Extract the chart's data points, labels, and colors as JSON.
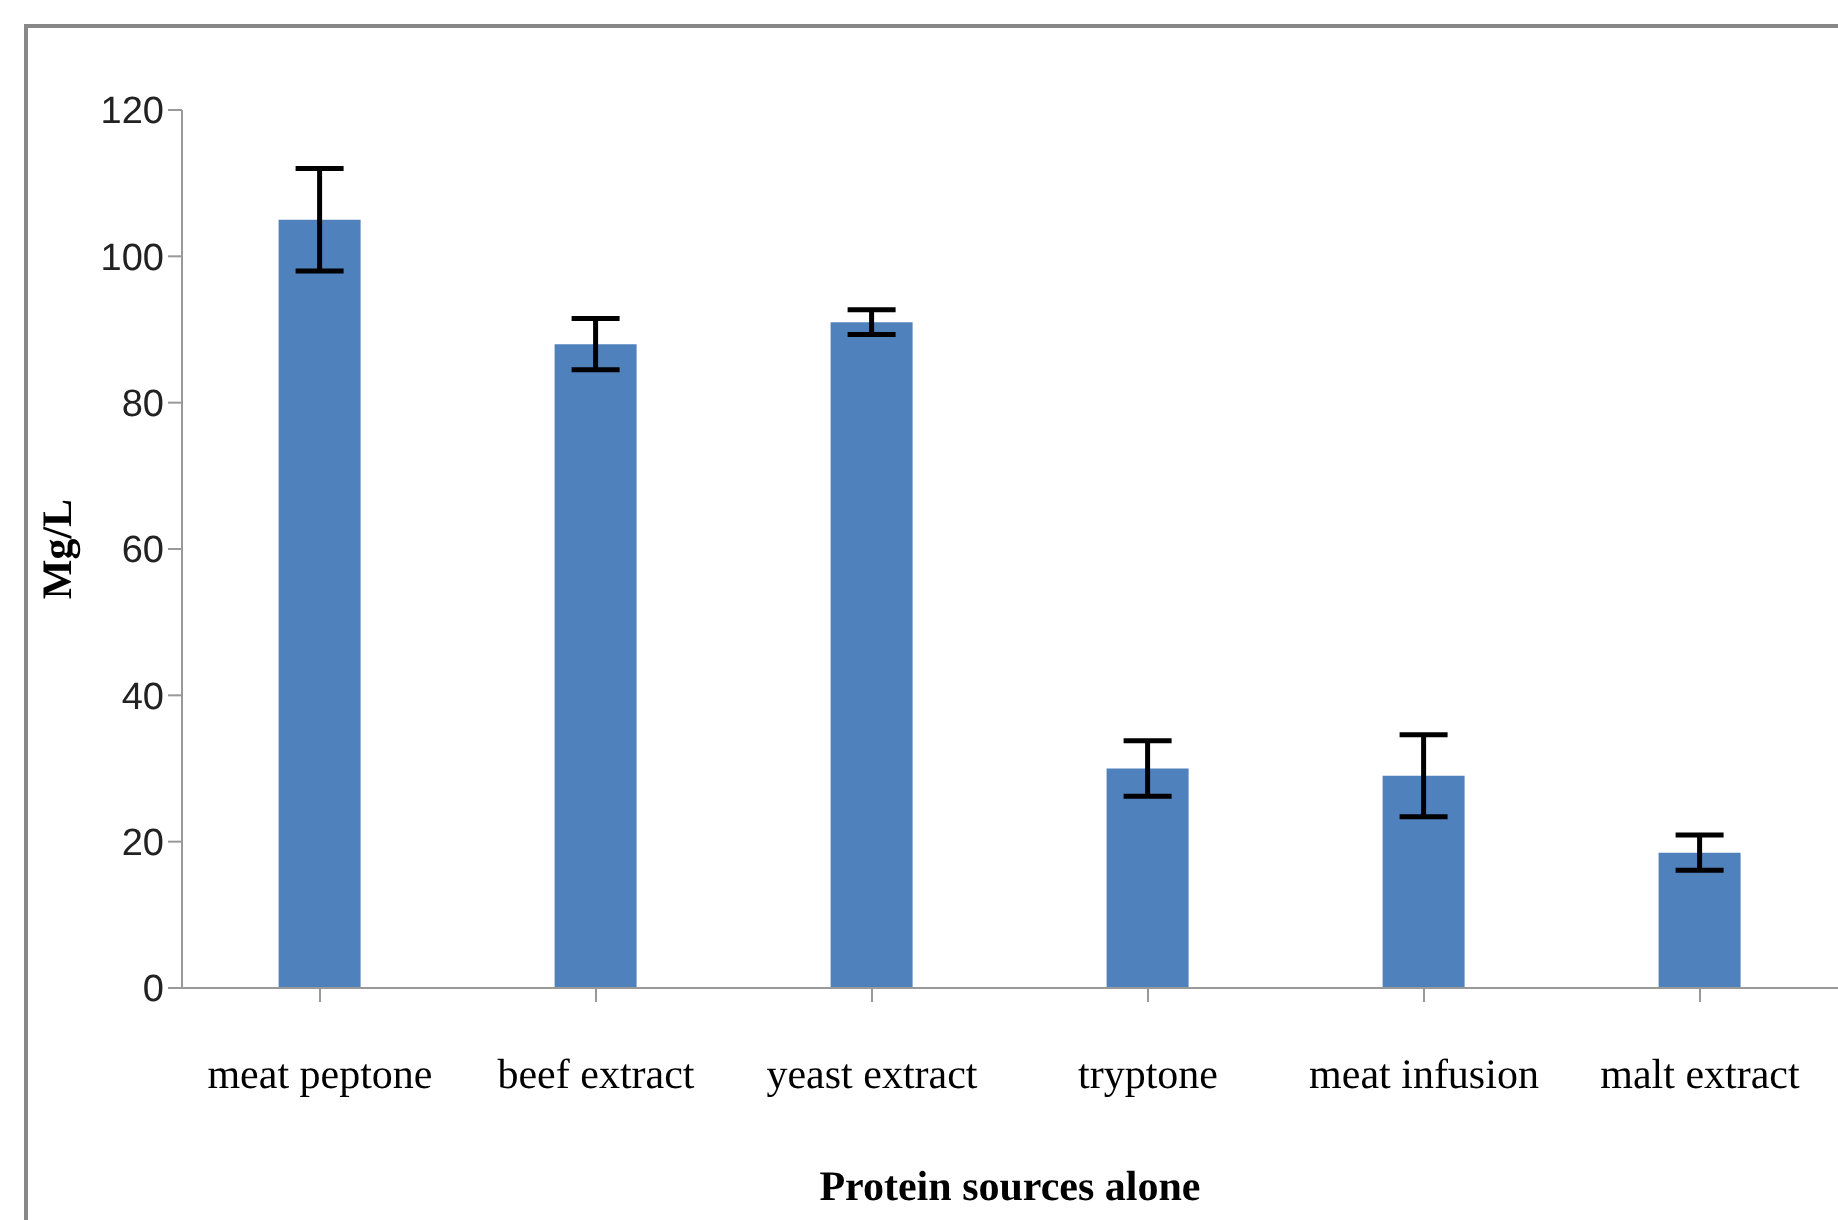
{
  "chart_data": {
    "type": "bar",
    "xlabel": "Protein sources alone",
    "ylabel": "Mg/L",
    "categories": [
      "meat peptone",
      "beef extract",
      "yeast extract",
      "tryptone",
      "meat infusion",
      "malt extract"
    ],
    "values": [
      105,
      88,
      91,
      30,
      29,
      18.5
    ],
    "errors": [
      7,
      3.5,
      1.7,
      3.8,
      5.6,
      2.4
    ],
    "color": "#4f81bd",
    "ylim": [
      0,
      120
    ],
    "yticks": [
      0,
      20,
      40,
      60,
      80,
      100,
      120
    ],
    "grid": false
  }
}
